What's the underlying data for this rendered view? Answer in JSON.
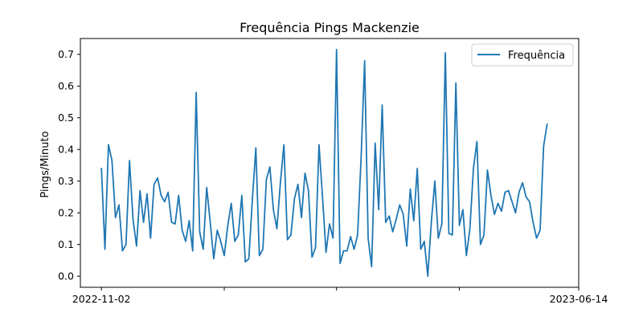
{
  "chart_data": {
    "type": "line",
    "title": "Frequência Pings Mackenzie",
    "xlabel": "",
    "ylabel": "Pings/Minuto",
    "ylim": [
      -0.035,
      0.75
    ],
    "yticks": [
      0.0,
      0.1,
      0.2,
      0.3,
      0.4,
      0.5,
      0.6,
      0.7
    ],
    "ytick_labels": [
      "0.0",
      "0.1",
      "0.2",
      "0.3",
      "0.4",
      "0.5",
      "0.6",
      "0.7"
    ],
    "xlim_index": [
      -6,
      136
    ],
    "xtick_labels": [
      {
        "index": 0,
        "label": "2022-11-02"
      },
      {
        "index": 35,
        "label": ""
      },
      {
        "index": 67,
        "label": ""
      },
      {
        "index": 102,
        "label": ""
      },
      {
        "index": 136,
        "label": "2023-06-14"
      }
    ],
    "grid": false,
    "legend": {
      "position": "top-right",
      "entries": [
        "Frequência"
      ]
    },
    "series": [
      {
        "name": "Frequência",
        "color": "#1f77b4",
        "values": [
          0.34,
          0.085,
          0.415,
          0.365,
          0.185,
          0.225,
          0.08,
          0.1,
          0.365,
          0.18,
          0.095,
          0.27,
          0.17,
          0.26,
          0.12,
          0.29,
          0.31,
          0.255,
          0.235,
          0.265,
          0.17,
          0.165,
          0.255,
          0.145,
          0.11,
          0.175,
          0.08,
          0.58,
          0.14,
          0.085,
          0.28,
          0.17,
          0.055,
          0.145,
          0.11,
          0.065,
          0.16,
          0.23,
          0.11,
          0.13,
          0.255,
          0.045,
          0.055,
          0.24,
          0.405,
          0.065,
          0.085,
          0.305,
          0.345,
          0.21,
          0.15,
          0.295,
          0.415,
          0.115,
          0.13,
          0.245,
          0.29,
          0.185,
          0.325,
          0.27,
          0.06,
          0.09,
          0.415,
          0.25,
          0.075,
          0.165,
          0.12,
          0.715,
          0.04,
          0.08,
          0.08,
          0.125,
          0.085,
          0.13,
          0.375,
          0.68,
          0.12,
          0.03,
          0.42,
          0.21,
          0.54,
          0.17,
          0.19,
          0.14,
          0.18,
          0.225,
          0.195,
          0.095,
          0.275,
          0.175,
          0.34,
          0.085,
          0.11,
          0.0,
          0.17,
          0.3,
          0.12,
          0.165,
          0.705,
          0.135,
          0.13,
          0.61,
          0.16,
          0.21,
          0.065,
          0.15,
          0.34,
          0.425,
          0.1,
          0.13,
          0.335,
          0.255,
          0.195,
          0.23,
          0.205,
          0.265,
          0.27,
          0.235,
          0.2,
          0.265,
          0.295,
          0.25,
          0.235,
          0.17,
          0.12,
          0.145,
          0.41,
          0.48
        ]
      }
    ]
  }
}
